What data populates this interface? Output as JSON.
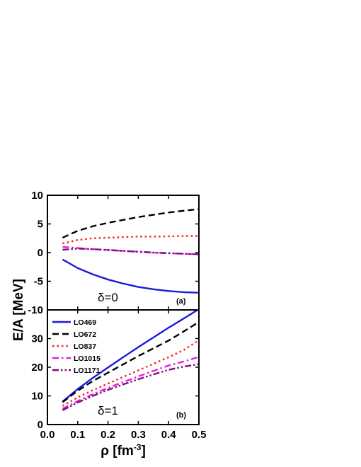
{
  "chart_data": [
    {
      "type": "line",
      "panel_tag": "(a)",
      "annotation": "δ=0",
      "ylabel": "E/A [MeV]",
      "xlabel": "",
      "xlim": [
        0.0,
        0.5
      ],
      "ylim": [
        -10,
        10
      ],
      "xticks": [
        0.0,
        0.1,
        0.2,
        0.3,
        0.4,
        0.5
      ],
      "yticks": [
        -10,
        -5,
        0,
        5,
        10
      ],
      "xtick_labels": [],
      "ytick_labels": [
        "-10",
        "-5",
        "0",
        "5",
        "10"
      ],
      "series": [
        {
          "name": "LO469",
          "color": "#1a1adb",
          "dash": "solid",
          "x": [
            0.05,
            0.1,
            0.15,
            0.2,
            0.25,
            0.3,
            0.35,
            0.4,
            0.45,
            0.5
          ],
          "y": [
            -1.2,
            -2.7,
            -3.8,
            -4.7,
            -5.4,
            -6.0,
            -6.4,
            -6.7,
            -6.9,
            -7.0
          ]
        },
        {
          "name": "LO672",
          "color": "#000000",
          "dash": "dash",
          "x": [
            0.05,
            0.1,
            0.15,
            0.2,
            0.25,
            0.3,
            0.35,
            0.4,
            0.45,
            0.5
          ],
          "y": [
            2.6,
            3.8,
            4.6,
            5.2,
            5.7,
            6.2,
            6.6,
            7.0,
            7.3,
            7.6
          ]
        },
        {
          "name": "LO837",
          "color": "#ff1a1a",
          "dash": "dot",
          "x": [
            0.05,
            0.1,
            0.15,
            0.2,
            0.25,
            0.3,
            0.35,
            0.4,
            0.45,
            0.5
          ],
          "y": [
            1.6,
            2.2,
            2.5,
            2.6,
            2.7,
            2.8,
            2.8,
            2.85,
            2.9,
            2.9
          ]
        },
        {
          "name": "LO1015",
          "color": "#e61ae6",
          "dash": "dashdot",
          "x": [
            0.05,
            0.1,
            0.15,
            0.2,
            0.25,
            0.3,
            0.35,
            0.4,
            0.45,
            0.5
          ],
          "y": [
            1.0,
            0.8,
            0.6,
            0.45,
            0.3,
            0.15,
            0.0,
            -0.1,
            -0.2,
            -0.3
          ]
        },
        {
          "name": "LO1171",
          "color": "#7a0f7a",
          "dash": "dashdotdot",
          "x": [
            0.05,
            0.1,
            0.15,
            0.2,
            0.25,
            0.3,
            0.35,
            0.4,
            0.45,
            0.5
          ],
          "y": [
            0.5,
            0.7,
            0.6,
            0.45,
            0.3,
            0.15,
            0.0,
            -0.1,
            -0.2,
            -0.3
          ]
        }
      ]
    },
    {
      "type": "line",
      "panel_tag": "(b)",
      "annotation": "δ=1",
      "ylabel": "",
      "xlabel": "ρ [fm-3]",
      "xlim": [
        0.0,
        0.5
      ],
      "ylim": [
        0,
        40
      ],
      "xticks": [
        0.0,
        0.1,
        0.2,
        0.3,
        0.4,
        0.5
      ],
      "yticks": [
        0,
        10,
        20,
        30
      ],
      "xtick_labels": [
        "0.0",
        "0.1",
        "0.2",
        "0.3",
        "0.4",
        "0.5"
      ],
      "ytick_labels": [
        "0",
        "10",
        "20",
        "30"
      ],
      "legend": {
        "position": "top-left",
        "entries": [
          "LO469",
          "LO672",
          "LO837",
          "LO1015",
          "LO1171"
        ]
      },
      "series": [
        {
          "name": "LO469",
          "color": "#1a1adb",
          "dash": "solid",
          "x": [
            0.05,
            0.1,
            0.15,
            0.2,
            0.25,
            0.3,
            0.35,
            0.4,
            0.45,
            0.5
          ],
          "y": [
            8.0,
            12.4,
            16.3,
            19.9,
            23.5,
            27.0,
            30.4,
            33.8,
            37.0,
            40.3
          ]
        },
        {
          "name": "LO672",
          "color": "#000000",
          "dash": "dash",
          "x": [
            0.05,
            0.1,
            0.15,
            0.2,
            0.25,
            0.3,
            0.35,
            0.4,
            0.45,
            0.5
          ],
          "y": [
            7.8,
            11.8,
            15.2,
            18.1,
            21.0,
            23.9,
            26.6,
            29.3,
            32.5,
            35.8
          ]
        },
        {
          "name": "LO837",
          "color": "#ff1a1a",
          "dash": "dot",
          "x": [
            0.05,
            0.1,
            0.15,
            0.2,
            0.25,
            0.3,
            0.35,
            0.4,
            0.45,
            0.5
          ],
          "y": [
            6.5,
            9.5,
            12.0,
            14.3,
            16.6,
            18.9,
            21.2,
            23.5,
            26.0,
            29.4
          ]
        },
        {
          "name": "LO1015",
          "color": "#e61ae6",
          "dash": "dashdot",
          "x": [
            0.05,
            0.1,
            0.15,
            0.2,
            0.25,
            0.3,
            0.35,
            0.4,
            0.45,
            0.5
          ],
          "y": [
            5.5,
            8.2,
            10.6,
            12.8,
            14.8,
            16.8,
            18.7,
            20.6,
            22.0,
            23.6
          ]
        },
        {
          "name": "LO1171",
          "color": "#7a0f7a",
          "dash": "dashdotdot",
          "x": [
            0.05,
            0.1,
            0.15,
            0.2,
            0.25,
            0.3,
            0.35,
            0.4,
            0.45,
            0.5
          ],
          "y": [
            5.0,
            7.7,
            10.0,
            12.1,
            14.0,
            15.8,
            17.5,
            19.1,
            20.2,
            21.1
          ]
        }
      ]
    }
  ],
  "axis_text": {
    "ylabel": "E/A [MeV]",
    "xlabel_main": "ρ [fm",
    "xlabel_exp": "-3",
    "xlabel_close": "]"
  }
}
